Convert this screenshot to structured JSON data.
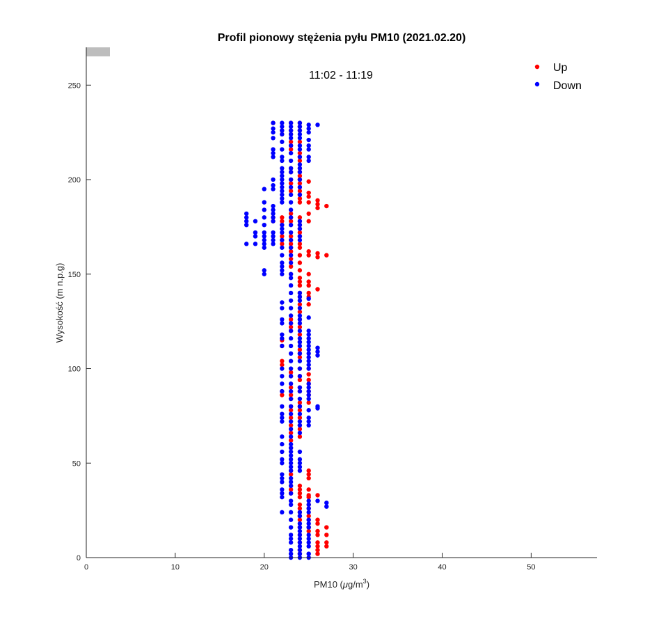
{
  "chart_data": {
    "type": "scatter",
    "title": "Profil pionowy stężenia pyłu PM10 (2021.02.20)",
    "subtitle": "11:02 - 11:19",
    "xlabel_main": "PM10 (",
    "xlabel_unit_mu": "μ",
    "xlabel_unit_rest": "g/m",
    "xlabel_sup": "3",
    "xlabel_close": ")",
    "ylabel": "Wysokość (m n.p.g)",
    "xlim": [
      0,
      57.4
    ],
    "ylim": [
      0,
      270
    ],
    "xticks": [
      "0",
      "10",
      "20",
      "30",
      "40",
      "50"
    ],
    "yticks": [
      "0",
      "50",
      "100",
      "150",
      "200",
      "250"
    ],
    "legend_placement": "top-right",
    "series": [
      {
        "name": "Up",
        "color": "#ff0000",
        "points": {
          "21": [
            230,
            180,
            178
          ],
          "22": [
            226,
            224,
            180,
            178,
            176,
            170,
            168,
            166,
            115,
            112,
            104,
            102,
            88,
            86
          ],
          "23": [
            230,
            226,
            224,
            220,
            218,
            216,
            206,
            204,
            200,
            198,
            194,
            182,
            180,
            178,
            170,
            168,
            166,
            164,
            162,
            158,
            154,
            150,
            126,
            124,
            122,
            120,
            98,
            96,
            90,
            86,
            84,
            80,
            78,
            74,
            70,
            66,
            62,
            58,
            46,
            44,
            38,
            36,
            34
          ],
          "24": [
            230,
            228,
            226,
            220,
            214,
            212,
            210,
            206,
            204,
            202,
            200,
            198,
            196,
            194,
            192,
            190,
            188,
            180,
            178,
            176,
            174,
            172,
            170,
            166,
            164,
            160,
            156,
            152,
            148,
            146,
            144,
            140,
            138,
            134,
            130,
            126,
            122,
            118,
            114,
            110,
            108,
            106,
            100,
            96,
            94,
            90,
            88,
            82,
            80,
            78,
            74,
            70,
            68,
            64,
            38,
            36,
            34,
            32,
            28,
            26,
            24,
            22,
            20,
            16,
            12,
            8,
            4,
            2
          ],
          "25": [
            199,
            193,
            191,
            188,
            182,
            178,
            162,
            160,
            150,
            146,
            144,
            140,
            138,
            134,
            100,
            97,
            94,
            92,
            88,
            86,
            82,
            46,
            44,
            42,
            36,
            33,
            32,
            28,
            26,
            22,
            20,
            16,
            14
          ],
          "26": [
            189,
            187,
            185,
            161,
            159,
            142,
            33,
            20,
            18,
            14,
            12,
            8,
            6,
            4,
            2
          ],
          "27": [
            186,
            160,
            16,
            12,
            8,
            6
          ]
        }
      },
      {
        "name": "Down",
        "color": "#0000ff",
        "points": {
          "18": [
            176,
            178,
            180,
            182,
            166
          ],
          "19": [
            170,
            172,
            178,
            166
          ],
          "20": [
            195,
            188,
            184,
            180,
            176,
            172,
            170,
            168,
            166,
            164,
            150,
            152
          ],
          "21": [
            225,
            227,
            230,
            222,
            212,
            214,
            216,
            200,
            197,
            195,
            186,
            184,
            182,
            180,
            178,
            172,
            170,
            168,
            166
          ],
          "22": [
            230,
            228,
            226,
            224,
            220,
            216,
            212,
            210,
            206,
            204,
            202,
            200,
            198,
            196,
            194,
            192,
            190,
            188,
            176,
            174,
            172,
            168,
            164,
            160,
            156,
            154,
            152,
            150,
            135,
            132,
            126,
            124,
            118,
            116,
            112,
            100,
            96,
            92,
            88,
            80,
            76,
            74,
            72,
            64,
            60,
            56,
            52,
            50,
            44,
            42,
            40,
            36,
            34,
            32,
            24
          ],
          "23": [
            230,
            228,
            226,
            224,
            222,
            218,
            214,
            210,
            206,
            204,
            200,
            196,
            192,
            188,
            184,
            180,
            176,
            172,
            168,
            164,
            160,
            156,
            150,
            148,
            144,
            140,
            136,
            132,
            128,
            124,
            120,
            116,
            112,
            108,
            104,
            100,
            96,
            92,
            88,
            84,
            80,
            76,
            72,
            68,
            64,
            60,
            58,
            56,
            54,
            52,
            50,
            48,
            46,
            42,
            40,
            38,
            34,
            30,
            28,
            24,
            20,
            16,
            12,
            10,
            8,
            4,
            2,
            0
          ],
          "24": [
            230,
            228,
            226,
            224,
            222,
            218,
            216,
            212,
            208,
            206,
            204,
            200,
            196,
            192,
            178,
            176,
            174,
            170,
            168,
            140,
            138,
            136,
            132,
            128,
            126,
            124,
            120,
            116,
            114,
            112,
            108,
            104,
            100,
            96,
            90,
            88,
            84,
            80,
            76,
            72,
            70,
            66,
            56,
            52,
            50,
            48,
            46,
            24,
            22,
            18,
            16,
            14,
            12,
            10,
            8,
            6,
            4,
            2,
            0
          ],
          "25": [
            229,
            227,
            225,
            221,
            218,
            216,
            212,
            210,
            137,
            127,
            120,
            118,
            116,
            114,
            112,
            110,
            108,
            106,
            104,
            102,
            100,
            92,
            90,
            88,
            86,
            84,
            78,
            74,
            72,
            70,
            30,
            28,
            26,
            24,
            20,
            18,
            16,
            12,
            10,
            8,
            6,
            2,
            0
          ],
          "26": [
            229,
            111,
            109,
            107,
            80,
            79,
            30
          ],
          "27": [
            29,
            27
          ]
        }
      }
    ]
  }
}
